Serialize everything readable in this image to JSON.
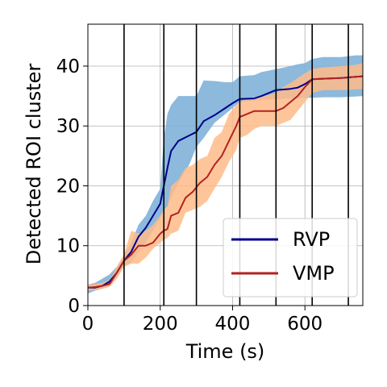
{
  "chart_data": {
    "type": "line",
    "title": "",
    "xlabel": "Time (s)",
    "ylabel": "Detected ROI cluster",
    "xlim": [
      0,
      760
    ],
    "ylim": [
      0,
      47
    ],
    "xticks": [
      0,
      200,
      400,
      600
    ],
    "yticks": [
      0,
      10,
      20,
      30,
      40
    ],
    "grid": true,
    "legend_position": "lower-right",
    "vertical_lines": [
      100,
      210,
      300,
      420,
      520,
      620,
      720
    ],
    "series": [
      {
        "name": "RVP",
        "color": "#00008b",
        "band_color": "#7fb1d8",
        "x": [
          0,
          20,
          40,
          60,
          80,
          100,
          120,
          140,
          160,
          180,
          200,
          210,
          220,
          230,
          250,
          280,
          300,
          320,
          350,
          380,
          400,
          420,
          460,
          480,
          520,
          560,
          580,
          600,
          620,
          650,
          700,
          740,
          760
        ],
        "y": [
          3,
          3,
          3.3,
          4,
          5.5,
          7.5,
          9,
          11.5,
          13,
          15,
          17,
          20,
          23,
          25.8,
          27.5,
          28.4,
          29,
          30.8,
          31.8,
          33,
          33.8,
          34.5,
          34.6,
          35,
          36,
          36.2,
          36.4,
          37,
          37.8,
          37.9,
          38,
          38.2,
          38.3
        ],
        "upper": [
          3.5,
          3.8,
          4.5,
          5.2,
          6.5,
          8.5,
          10.5,
          13.5,
          15,
          17.5,
          19.5,
          28,
          32,
          33.5,
          35,
          35,
          35,
          37.6,
          37.5,
          37.3,
          37.3,
          38.3,
          38.5,
          39,
          39.5,
          40,
          40.3,
          40.5,
          41.2,
          41.5,
          41.5,
          41.8,
          41.8
        ],
        "lower": [
          2,
          2.5,
          2.8,
          3.3,
          4.8,
          6.5,
          7.2,
          9,
          10.5,
          12.5,
          14.5,
          16,
          16.5,
          18,
          20.5,
          23.5,
          26.5,
          28,
          30.5,
          32,
          33,
          34,
          34.2,
          34.3,
          34.5,
          34.6,
          34.6,
          34.7,
          34.7,
          34.8,
          34.8,
          34.9,
          35
        ]
      },
      {
        "name": "VMP",
        "color": "#b22222",
        "band_color": "#ffbb88",
        "x": [
          0,
          20,
          40,
          60,
          80,
          100,
          120,
          140,
          160,
          180,
          200,
          210,
          220,
          230,
          250,
          270,
          290,
          310,
          330,
          350,
          370,
          390,
          410,
          420,
          440,
          460,
          480,
          500,
          520,
          540,
          560,
          580,
          600,
          620,
          650,
          700,
          740,
          760
        ],
        "y": [
          3,
          3.1,
          3.3,
          3.6,
          5.5,
          7.5,
          8.5,
          10,
          10,
          10.5,
          12,
          12.5,
          12.8,
          15,
          15.5,
          18,
          19,
          20.5,
          21.5,
          23.5,
          25,
          27.5,
          30,
          31.5,
          32,
          32.5,
          32.5,
          32.5,
          32.5,
          33,
          34,
          35,
          36.5,
          37.8,
          37.9,
          38,
          38.2,
          38.3
        ],
        "upper": [
          3.5,
          3.6,
          3.8,
          4.2,
          6.5,
          8.6,
          12.5,
          12,
          12.5,
          13.5,
          15,
          16,
          16.5,
          20,
          21,
          23,
          23.5,
          24.5,
          25,
          28,
          29,
          32,
          33.5,
          34,
          34.5,
          34.8,
          35,
          35.2,
          35.5,
          36.5,
          37.2,
          38,
          38.8,
          39.5,
          39.8,
          40,
          40.2,
          40.5
        ],
        "lower": [
          2.5,
          2.6,
          2.8,
          3.1,
          4.5,
          6.5,
          7,
          7,
          8,
          9.5,
          10.5,
          11,
          11.3,
          12,
          12.5,
          15.5,
          16,
          16.5,
          17.5,
          19.5,
          21.5,
          24,
          26,
          28,
          28.5,
          29.5,
          30,
          30,
          30,
          30.5,
          31,
          32.5,
          34,
          35.5,
          36,
          36,
          36.1,
          36.2
        ]
      }
    ]
  }
}
